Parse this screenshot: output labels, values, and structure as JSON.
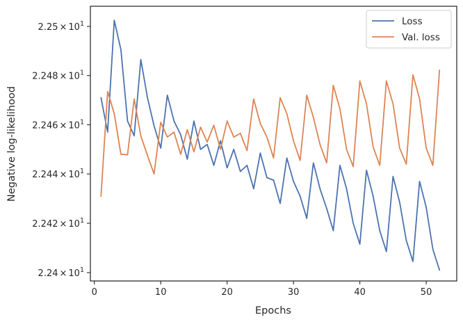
{
  "chart_data": {
    "type": "line",
    "xlabel": "Epochs",
    "ylabel": "Negative log-likelihood",
    "xlim": [
      -0.6,
      54.6
    ],
    "ylim": [
      22.3966,
      22.5082
    ],
    "y_scale": "log",
    "x_ticks": [
      {
        "value": 0,
        "label": "0"
      },
      {
        "value": 10,
        "label": "10"
      },
      {
        "value": 20,
        "label": "20"
      },
      {
        "value": 30,
        "label": "30"
      },
      {
        "value": 40,
        "label": "40"
      },
      {
        "value": 50,
        "label": "50"
      }
    ],
    "y_ticks": [
      {
        "value": 22.4,
        "mantissa": "2.24",
        "times": "×",
        "base": "10",
        "exponent": "1"
      },
      {
        "value": 22.42,
        "mantissa": "2.242",
        "times": "×",
        "base": "10",
        "exponent": "1"
      },
      {
        "value": 22.44,
        "mantissa": "2.244",
        "times": "×",
        "base": "10",
        "exponent": "1"
      },
      {
        "value": 22.46,
        "mantissa": "2.246",
        "times": "×",
        "base": "10",
        "exponent": "1"
      },
      {
        "value": 22.48,
        "mantissa": "2.248",
        "times": "×",
        "base": "10",
        "exponent": "1"
      },
      {
        "value": 22.5,
        "mantissa": "2.25",
        "times": "×",
        "base": "10",
        "exponent": "1"
      }
    ],
    "x": [
      1,
      2,
      3,
      4,
      5,
      6,
      7,
      8,
      9,
      10,
      11,
      12,
      13,
      14,
      15,
      16,
      17,
      18,
      19,
      20,
      21,
      22,
      23,
      24,
      25,
      26,
      27,
      28,
      29,
      30,
      31,
      32,
      33,
      34,
      35,
      36,
      37,
      38,
      39,
      40,
      41,
      42,
      43,
      44,
      45,
      46,
      47,
      48,
      49,
      50,
      51,
      52
    ],
    "series": [
      {
        "name": "Loss",
        "color": "#4c72b0",
        "values": [
          22.471,
          22.457,
          22.5025,
          22.4905,
          22.4615,
          22.4555,
          22.4865,
          22.471,
          22.4595,
          22.4505,
          22.472,
          22.4615,
          22.456,
          22.446,
          22.4615,
          22.45,
          22.452,
          22.4435,
          22.4535,
          22.4425,
          22.45,
          22.441,
          22.4435,
          22.434,
          22.4485,
          22.4385,
          22.4375,
          22.428,
          22.4465,
          22.437,
          22.431,
          22.422,
          22.4445,
          22.434,
          22.426,
          22.417,
          22.4435,
          22.434,
          22.42,
          22.4115,
          22.4415,
          22.431,
          22.417,
          22.4085,
          22.439,
          22.4285,
          22.413,
          22.4045,
          22.437,
          22.4265,
          22.4095,
          22.401
        ]
      },
      {
        "name": "Val. loss",
        "color": "#dd8452",
        "values": [
          22.431,
          22.4735,
          22.4645,
          22.448,
          22.4478,
          22.4705,
          22.4555,
          22.4475,
          22.44,
          22.461,
          22.455,
          22.457,
          22.448,
          22.458,
          22.449,
          22.459,
          22.453,
          22.4598,
          22.45,
          22.4615,
          22.455,
          22.4565,
          22.4495,
          22.4705,
          22.4605,
          22.455,
          22.4465,
          22.471,
          22.4645,
          22.4535,
          22.4455,
          22.472,
          22.463,
          22.452,
          22.4445,
          22.476,
          22.4665,
          22.45,
          22.443,
          22.4778,
          22.4685,
          22.451,
          22.4435,
          22.4778,
          22.4685,
          22.4505,
          22.444,
          22.4803,
          22.4705,
          22.4505,
          22.4435,
          22.4822
        ]
      }
    ],
    "grid": false,
    "legend": {
      "position": "upper-right"
    }
  }
}
